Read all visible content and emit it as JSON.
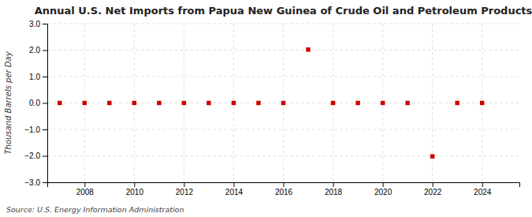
{
  "chart_data": {
    "type": "scatter",
    "title": "Annual U.S. Net Imports from Papua New Guinea of Crude Oil and Petroleum Products",
    "y_label": "Thousand Barrels per Day",
    "annotations": [
      "Source: U.S. Energy Information Administration"
    ],
    "x": [
      2007,
      2008,
      2009,
      2010,
      2011,
      2012,
      2013,
      2014,
      2015,
      2016,
      2017,
      2018,
      2019,
      2020,
      2021,
      2022,
      2023,
      2024
    ],
    "values": [
      0,
      0,
      0,
      0,
      0,
      0,
      0,
      0,
      0,
      0,
      2.02,
      0,
      0,
      0,
      0,
      -2.02,
      0,
      0
    ],
    "color": "#cc0000",
    "marker": "square",
    "xlim": [
      2006.5,
      2025.5
    ],
    "ylim": [
      -3.0,
      3.0
    ],
    "xticks": [
      2008,
      2010,
      2012,
      2014,
      2016,
      2018,
      2020,
      2022,
      2024
    ],
    "yticks": [
      {
        "value": -3.0,
        "label": "−3.0"
      },
      {
        "value": -2.0,
        "label": "−2.0"
      },
      {
        "value": -1.0,
        "label": "−1.0"
      },
      {
        "value": 0.0,
        "label": "0.0"
      },
      {
        "value": 1.0,
        "label": "1.0"
      },
      {
        "value": 2.0,
        "label": "2.0"
      },
      {
        "value": 3.0,
        "label": "3.0"
      }
    ],
    "grid": true
  }
}
